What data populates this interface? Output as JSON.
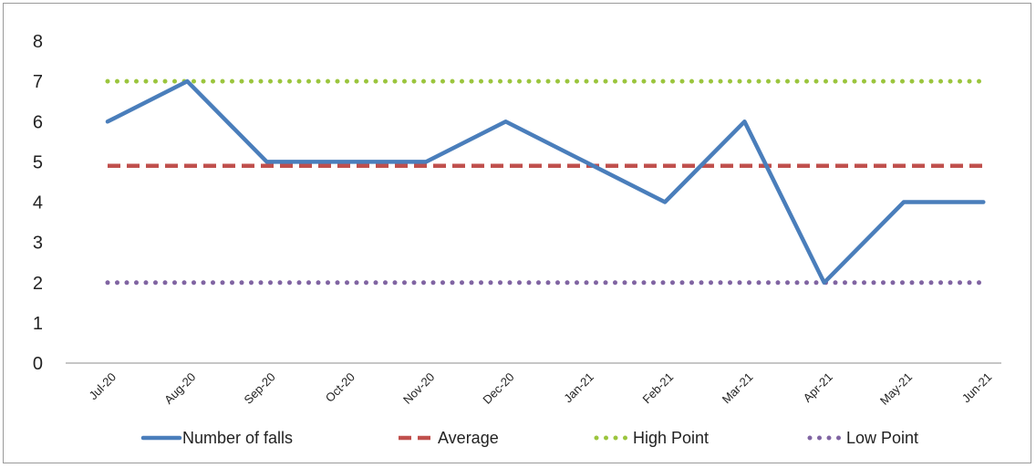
{
  "chart_data": {
    "type": "line",
    "categories": [
      "Jul-20",
      "Aug-20",
      "Sep-20",
      "Oct-20",
      "Nov-20",
      "Dec-20",
      "Jan-21",
      "Feb-21",
      "Mar-21",
      "Apr-21",
      "May-21",
      "Jun-21"
    ],
    "ylim": [
      0,
      8
    ],
    "yticks": [
      0,
      1,
      2,
      3,
      4,
      5,
      6,
      7,
      8
    ],
    "grid": false,
    "legend_position": "bottom",
    "series": [
      {
        "name": "Number of falls",
        "values": [
          6,
          7,
          5,
          5,
          5,
          6,
          5,
          4,
          6,
          2,
          4,
          4
        ],
        "color": "#4a7ebb",
        "style": "solid"
      },
      {
        "name": "Average",
        "values": [
          4.9,
          4.9,
          4.9,
          4.9,
          4.9,
          4.9,
          4.9,
          4.9,
          4.9,
          4.9,
          4.9,
          4.9
        ],
        "color": "#c0504d",
        "style": "dashed"
      },
      {
        "name": "High Point",
        "values": [
          7,
          7,
          7,
          7,
          7,
          7,
          7,
          7,
          7,
          7,
          7,
          7
        ],
        "color": "#9bc53d",
        "style": "dotted"
      },
      {
        "name": "Low Point",
        "values": [
          2,
          2,
          2,
          2,
          2,
          2,
          2,
          2,
          2,
          2,
          2,
          2
        ],
        "color": "#8064a2",
        "style": "dotted"
      }
    ]
  }
}
